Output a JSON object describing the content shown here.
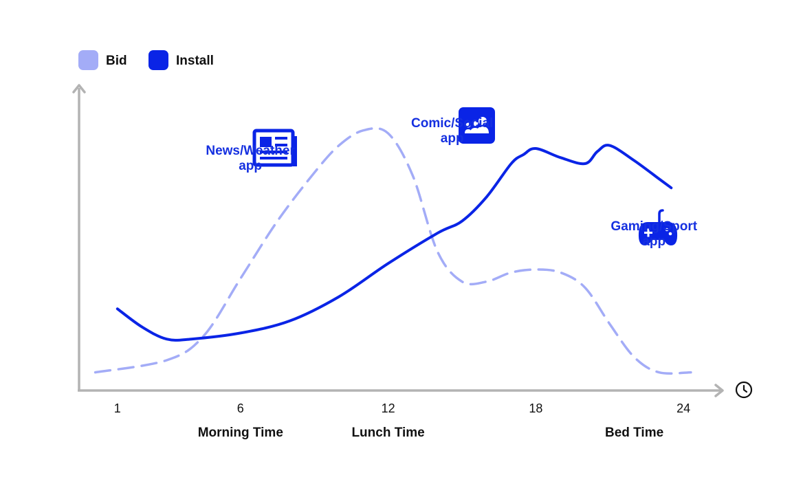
{
  "colors": {
    "bid": "#a3acf7",
    "install": "#0a24e6",
    "axis": "#b3b3b3",
    "accent_text": "#1530e0",
    "text": "#111111"
  },
  "chart_data": {
    "type": "line",
    "title": "",
    "xlabel": "",
    "ylabel": "",
    "x_axis_icon": "clock-icon",
    "x_ticks": [
      "1",
      "6",
      "12",
      "18",
      "24"
    ],
    "xlim": [
      0,
      25
    ],
    "ylim": [
      0,
      100
    ],
    "grid": false,
    "legend_position": "top-left",
    "legend": [
      {
        "label": "Bid",
        "swatch": "bid"
      },
      {
        "label": "Install",
        "swatch": "install"
      }
    ],
    "series": [
      {
        "name": "Bid",
        "style": "dashed",
        "x": [
          0.1,
          3,
          4.5,
          6,
          7.5,
          9,
          10,
          11,
          12,
          13,
          14,
          15,
          16,
          17,
          18,
          19,
          20,
          21,
          22,
          23,
          24.3
        ],
        "y": [
          6,
          10,
          18,
          37,
          56,
          72,
          81,
          86,
          85,
          71,
          46,
          36,
          36,
          39,
          40,
          39,
          34,
          22,
          11,
          6,
          6
        ]
      },
      {
        "name": "Install",
        "style": "solid",
        "x": [
          1,
          2,
          3,
          4,
          6,
          8,
          10,
          12,
          14,
          15,
          16,
          17,
          17.5,
          18,
          19,
          20,
          20.5,
          21,
          22,
          23,
          23.5
        ],
        "y": [
          27,
          21,
          17,
          17,
          19,
          23,
          31,
          42,
          52,
          56,
          64,
          75,
          78,
          80,
          77,
          75,
          79,
          81,
          76,
          70,
          67
        ]
      }
    ],
    "periods": [
      {
        "label": "Morning Time",
        "x": 6
      },
      {
        "label": "Lunch Time",
        "x": 12
      },
      {
        "label": "Bed Time",
        "x": 22
      }
    ],
    "annotations": [
      {
        "lines": [
          "News/Weather",
          "app"
        ],
        "icon": "newspaper-icon",
        "x": 6.4,
        "y": 78
      },
      {
        "lines": [
          "Comic/Social",
          "app"
        ],
        "icon": "social-group-icon",
        "x": 14.6,
        "y": 87
      },
      {
        "lines": [
          "Gaming/Sport",
          "app"
        ],
        "icon": "gamepad-icon",
        "x": 22.8,
        "y": 53
      }
    ]
  }
}
